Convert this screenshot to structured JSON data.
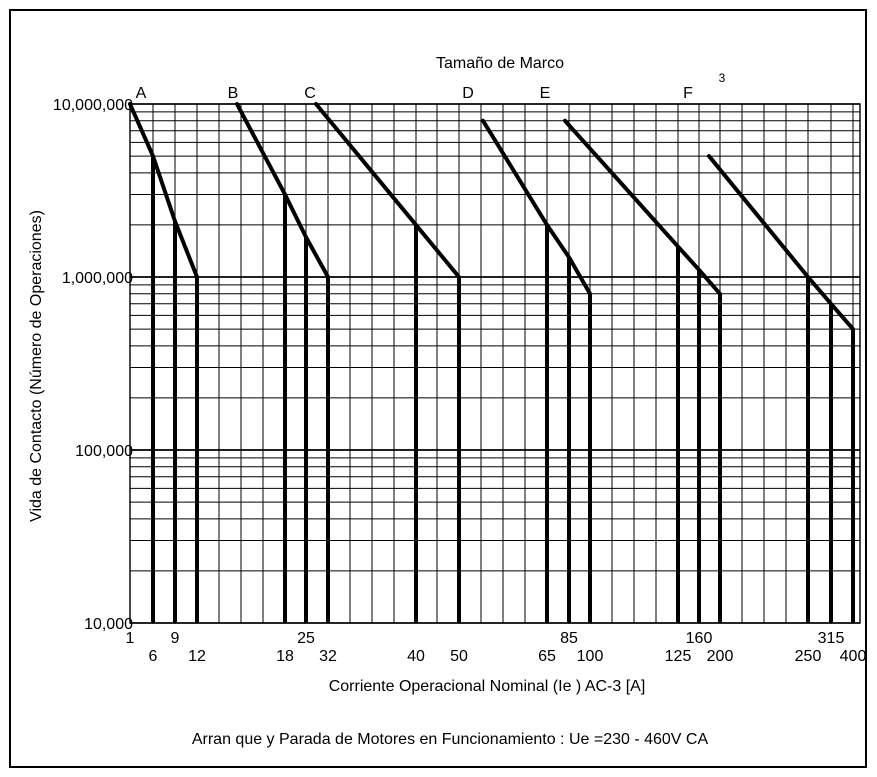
{
  "chart_data": {
    "type": "line",
    "title": "Tamaño de Marco",
    "xlabel": "Corriente Operacional Nominal (Ie ) AC-3 [A]",
    "ylabel": "Vida de Contacto (Número de Operaciones)",
    "footer": "Arran que y Parada de Motores en Funcionamiento : Ue =230 - 460V CA",
    "superscript": "3",
    "y_scale": "log",
    "ylim": [
      10000,
      10000000
    ],
    "y_ticks": [
      {
        "value": 10000000,
        "label": "10,000,000"
      },
      {
        "value": 1000000,
        "label": "1,000,000"
      },
      {
        "value": 100000,
        "label": "100,000"
      },
      {
        "value": 10000,
        "label": "10,000"
      }
    ],
    "x_ticks_upper": [
      {
        "value": 1,
        "label": "1"
      },
      {
        "value": 9,
        "label": "9"
      },
      {
        "value": 25,
        "label": "25"
      },
      {
        "value": 85,
        "label": "85"
      },
      {
        "value": 160,
        "label": "160"
      },
      {
        "value": 315,
        "label": "315"
      }
    ],
    "x_ticks_lower": [
      {
        "value": 6,
        "label": "6"
      },
      {
        "value": 12,
        "label": "12"
      },
      {
        "value": 18,
        "label": "18"
      },
      {
        "value": 32,
        "label": "32"
      },
      {
        "value": 40,
        "label": "40"
      },
      {
        "value": 50,
        "label": "50"
      },
      {
        "value": 65,
        "label": "65"
      },
      {
        "value": 100,
        "label": "100"
      },
      {
        "value": 125,
        "label": "125"
      },
      {
        "value": 200,
        "label": "200"
      },
      {
        "value": 250,
        "label": "250"
      },
      {
        "value": 400,
        "label": "400"
      }
    ],
    "grid": true,
    "series": [
      {
        "frame": "A",
        "points": [
          [
            1,
            10000000
          ],
          [
            6,
            5000000
          ],
          [
            9,
            2100000
          ],
          [
            12,
            1000000
          ]
        ],
        "drops": [
          6,
          9,
          12
        ]
      },
      {
        "frame": "B",
        "points": [
          [
            14,
            10000000
          ],
          [
            18,
            3000000
          ],
          [
            25,
            1700000
          ],
          [
            32,
            1000000
          ]
        ],
        "drops": [
          18,
          25,
          32
        ]
      },
      {
        "frame": "C",
        "points": [
          [
            20,
            10000000
          ],
          [
            40,
            2000000
          ],
          [
            50,
            1000000
          ]
        ],
        "drops": [
          40,
          50
        ]
      },
      {
        "frame": "D",
        "points": [
          [
            55,
            8000000
          ],
          [
            65,
            2000000
          ],
          [
            85,
            1300000
          ],
          [
            100,
            800000
          ]
        ],
        "drops": [
          65,
          85,
          100
        ]
      },
      {
        "frame": "E",
        "points": [
          [
            70,
            8000000
          ],
          [
            125,
            1500000
          ],
          [
            160,
            1100000
          ],
          [
            200,
            800000
          ]
        ],
        "drops": [
          125,
          160,
          200
        ]
      },
      {
        "frame": "F",
        "points": [
          [
            150,
            5000000
          ],
          [
            250,
            1000000
          ],
          [
            315,
            700000
          ],
          [
            400,
            500000
          ]
        ],
        "drops": [
          250,
          315,
          400
        ]
      }
    ]
  }
}
